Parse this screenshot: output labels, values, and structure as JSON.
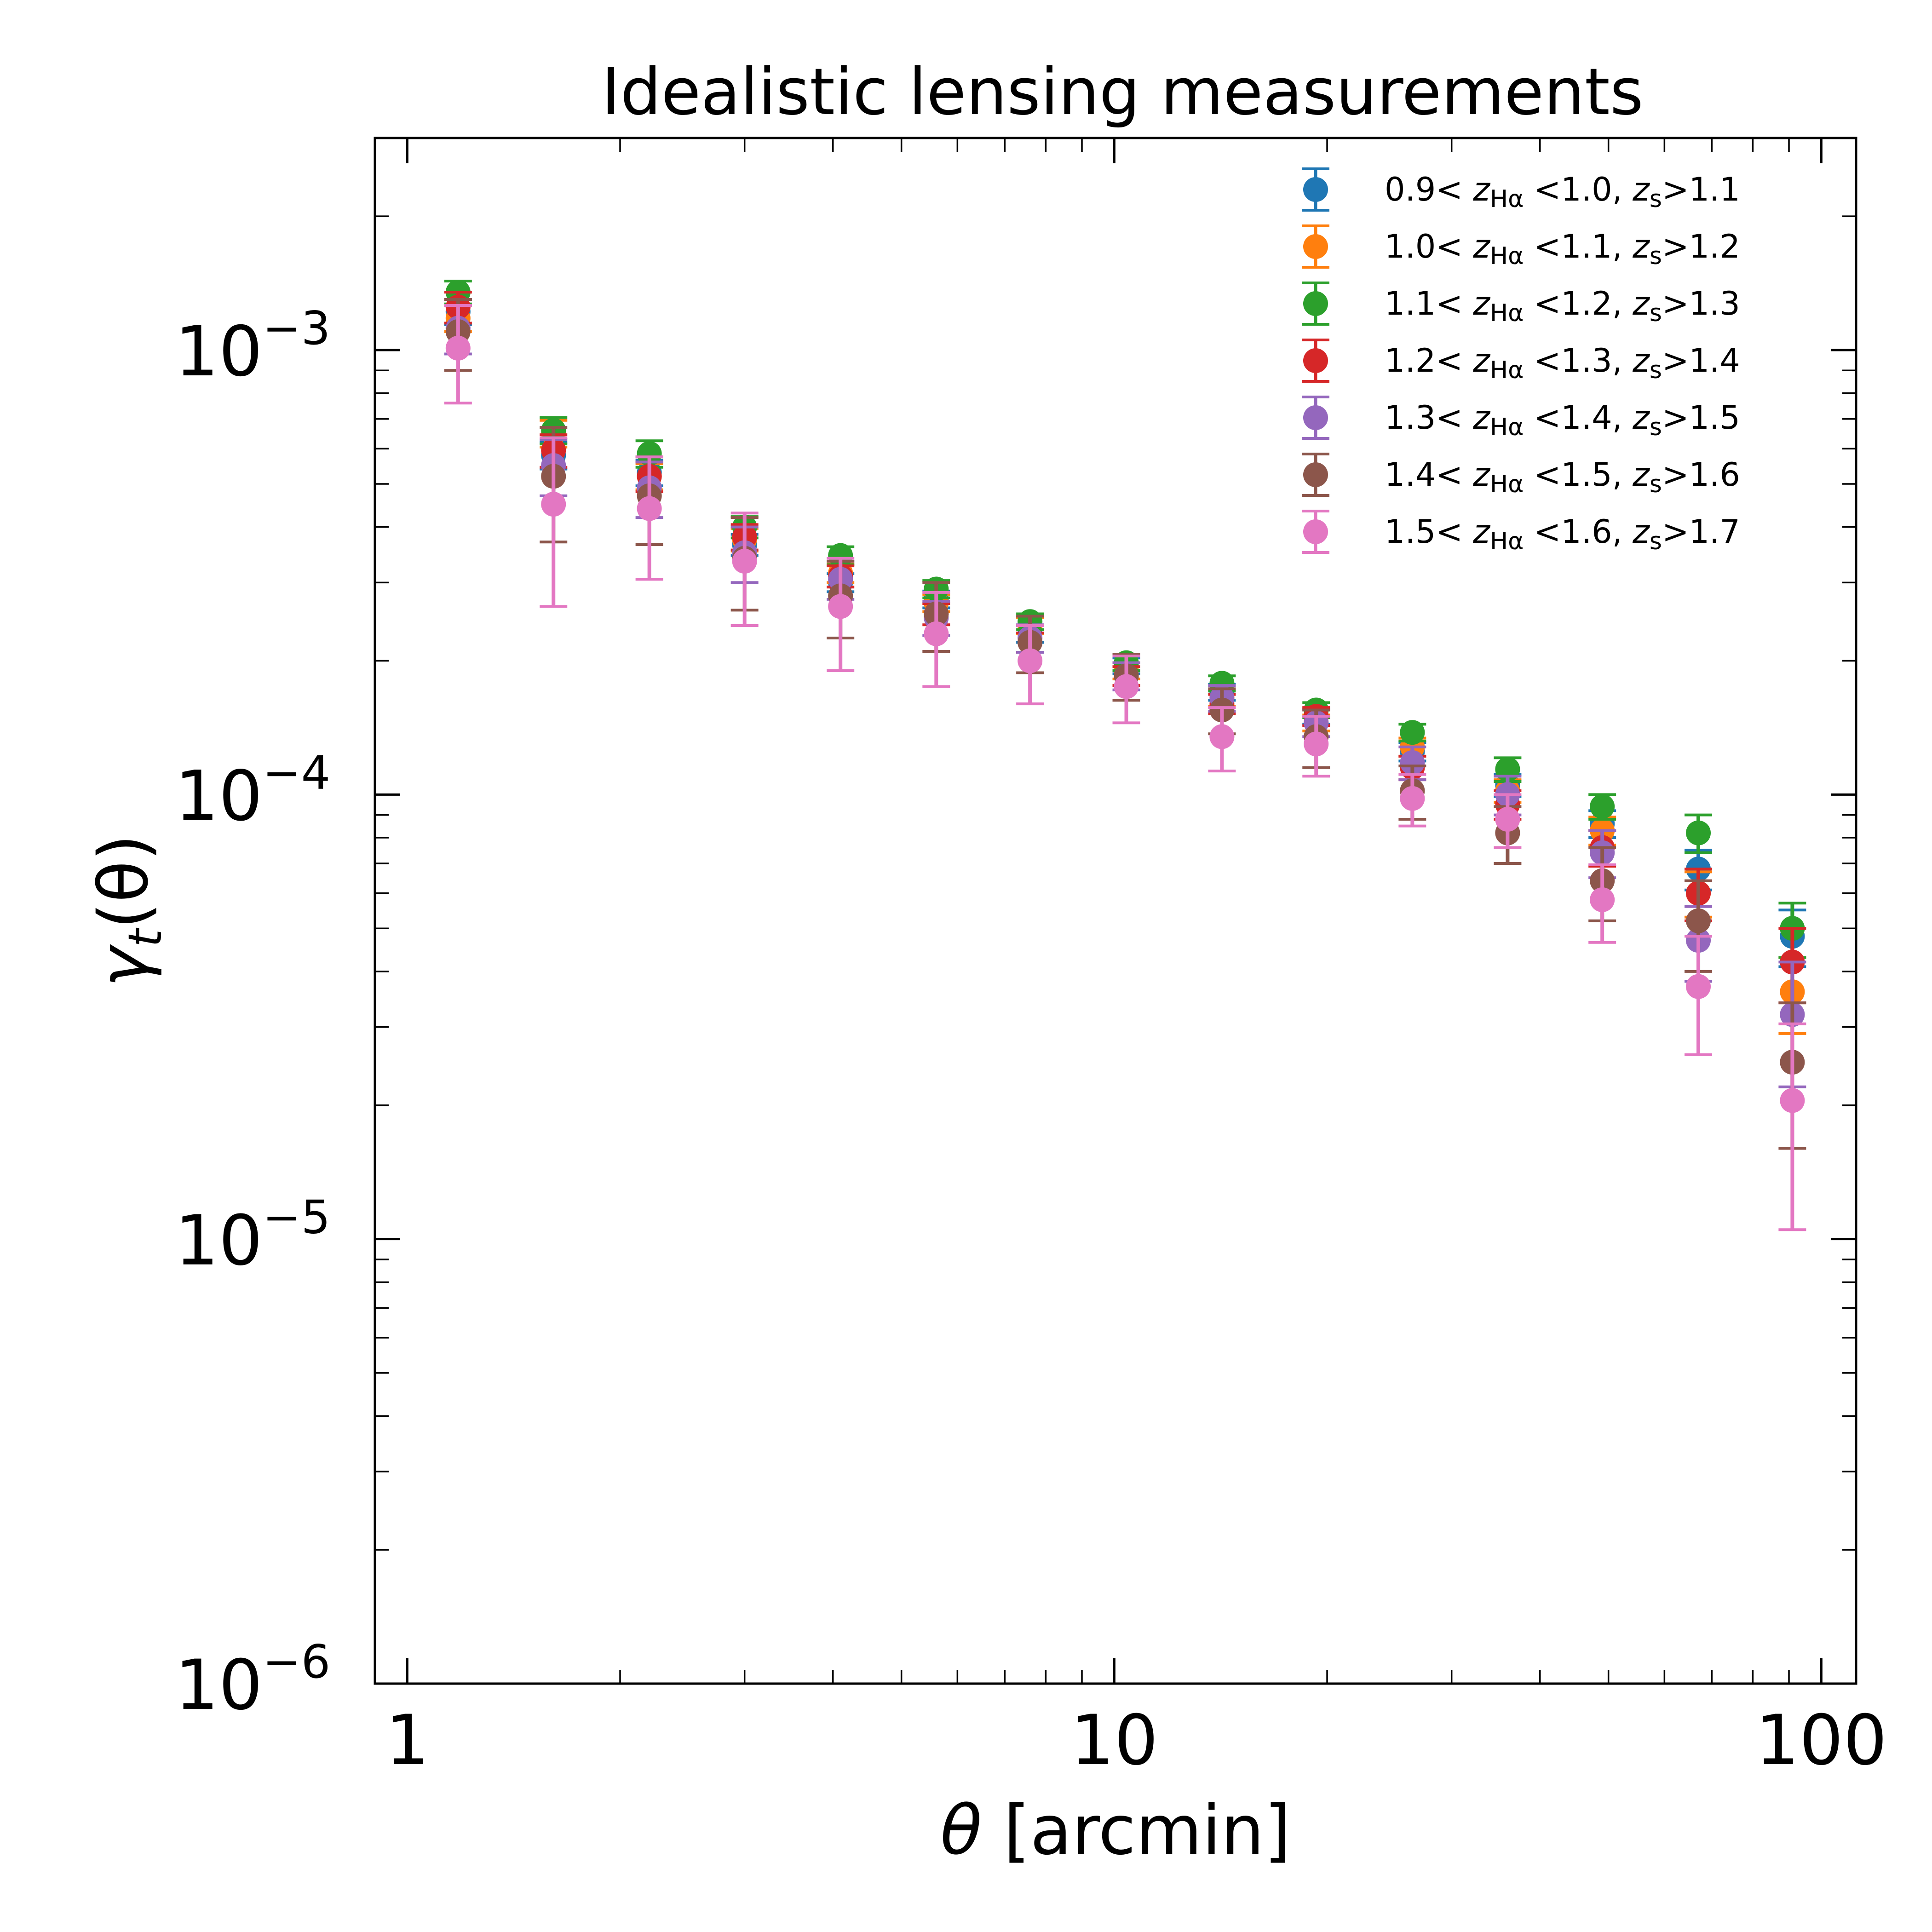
{
  "chart_data": {
    "type": "scatter",
    "title": "Idealistic lensing measurements",
    "xlabel": {
      "symbol": "θ",
      "text": " [arcmin]"
    },
    "ylabel": {
      "symbol": "γ",
      "sub": "t",
      "text": "(θ)"
    },
    "xscale": "log",
    "yscale": "log",
    "xlim": [
      0.9,
      112
    ],
    "ylim": [
      1e-06,
      0.003
    ],
    "x_ticks": [
      {
        "value": 1,
        "label": "1"
      },
      {
        "value": 10,
        "label": "10"
      },
      {
        "value": 100,
        "label": "100"
      }
    ],
    "y_ticks": [
      {
        "value": 0.001,
        "base": "10",
        "exp": "−3"
      },
      {
        "value": 0.0001,
        "base": "10",
        "exp": "−4"
      },
      {
        "value": 1e-05,
        "base": "10",
        "exp": "−5"
      },
      {
        "value": 1e-06,
        "base": "10",
        "exp": "−6"
      }
    ],
    "legend_position": "top-right",
    "x": [
      1.18,
      1.61,
      2.2,
      3.0,
      4.1,
      5.6,
      7.6,
      10.4,
      14.2,
      19.3,
      26.4,
      36.0,
      49.0,
      67.0,
      91.0
    ],
    "series": [
      {
        "name": {
          "lo": "0.9",
          "hi": "1.0",
          "src": "1.1"
        },
        "color": "#1f77b4",
        "y": [
          0.00122,
          0.00058,
          0.00053,
          0.000365,
          0.0003,
          0.000275,
          0.00023,
          0.000195,
          0.00017,
          0.00015,
          0.000125,
          0.000105,
          8.6e-05,
          6.8e-05,
          4.8e-05
        ],
        "err": [
          8e-05,
          4e-05,
          3.5e-05,
          2e-05,
          1.4e-05,
          1.2e-05,
          1e-05,
          8e-06,
          7e-06,
          6e-06,
          6e-06,
          6e-06,
          6e-06,
          7e-06,
          7e-06
        ]
      },
      {
        "name": {
          "lo": "1.0",
          "hi": "1.1",
          "src": "1.2"
        },
        "color": "#ff7f0e",
        "y": [
          0.00118,
          0.00065,
          0.00052,
          0.000375,
          0.000315,
          0.00027,
          0.00024,
          0.00019,
          0.000165,
          0.000145,
          0.000128,
          0.000102,
          8.3e-05,
          6e-05,
          3.6e-05
        ],
        "err": [
          8e-05,
          4.5e-05,
          3.5e-05,
          2.2e-05,
          1.5e-05,
          1.2e-05,
          1e-05,
          8e-06,
          7e-06,
          6e-06,
          6e-06,
          6e-06,
          6e-06,
          7e-06,
          7e-06
        ]
      },
      {
        "name": {
          "lo": "1.1",
          "hi": "1.2",
          "src": "1.3"
        },
        "color": "#2ca02c",
        "y": [
          0.00135,
          0.00066,
          0.000585,
          0.0004,
          0.000345,
          0.00029,
          0.000245,
          0.000198,
          0.000178,
          0.000155,
          0.000138,
          0.000114,
          9.4e-05,
          8.2e-05,
          5e-05
        ],
        "err": [
          8e-05,
          4.5e-05,
          4e-05,
          2.2e-05,
          1.6e-05,
          1.3e-05,
          1e-05,
          8e-06,
          7e-06,
          6e-06,
          6e-06,
          7e-06,
          6e-06,
          8e-06,
          7e-06
        ]
      },
      {
        "name": {
          "lo": "1.2",
          "hi": "1.3",
          "src": "1.4"
        },
        "color": "#d62728",
        "y": [
          0.00125,
          0.000595,
          0.00052,
          0.00038,
          0.00031,
          0.000255,
          0.00022,
          0.000185,
          0.00016,
          0.00015,
          0.000115,
          9.5e-05,
          7.6e-05,
          6e-05,
          4.2e-05
        ],
        "err": [
          0.0001,
          5e-05,
          4e-05,
          2.5e-05,
          1.7e-05,
          1.4e-05,
          1.1e-05,
          9e-06,
          8e-06,
          7e-06,
          7e-06,
          7e-06,
          7e-06,
          8e-06,
          8e-06
        ]
      },
      {
        "name": {
          "lo": "1.3",
          "hi": "1.4",
          "src": "1.5"
        },
        "color": "#9467bd",
        "y": [
          0.00112,
          0.00055,
          0.00049,
          0.00035,
          0.000305,
          0.00025,
          0.000225,
          0.000185,
          0.000165,
          0.000145,
          0.000118,
          0.0001,
          7.4e-05,
          4.7e-05,
          3.2e-05
        ],
        "err": [
          0.00014,
          8e-05,
          7e-05,
          5e-05,
          3e-05,
          2.2e-05,
          1.6e-05,
          1.3e-05,
          1.1e-05,
          1e-05,
          1e-05,
          1e-05,
          9e-06,
          9e-06,
          1e-05
        ]
      },
      {
        "name": {
          "lo": "1.4",
          "hi": "1.5",
          "src": "1.6"
        },
        "color": "#8c564b",
        "y": [
          0.0011,
          0.00052,
          0.00047,
          0.00034,
          0.00028,
          0.000255,
          0.00022,
          0.000185,
          0.000155,
          0.000135,
          0.000102,
          8.2e-05,
          6.4e-05,
          5.2e-05,
          2.5e-05
        ],
        "err": [
          0.0002,
          0.00015,
          0.000105,
          8e-05,
          5.5e-05,
          4.5e-05,
          3.2e-05,
          2.2e-05,
          1.8e-05,
          2e-05,
          1.4e-05,
          1.2e-05,
          1.2e-05,
          1.2e-05,
          9e-06
        ]
      },
      {
        "name": {
          "lo": "1.5",
          "hi": "1.6",
          "src": "1.7"
        },
        "color": "#e377c2",
        "y": [
          0.00101,
          0.00045,
          0.00044,
          0.000335,
          0.000265,
          0.00023,
          0.0002,
          0.000175,
          0.000135,
          0.00013,
          9.8e-05,
          8.8e-05,
          5.8e-05,
          3.7e-05,
          2.05e-05
        ],
        "err": [
          0.00025,
          0.000185,
          0.000135,
          9.5e-05,
          7.5e-05,
          5.5e-05,
          4e-05,
          3e-05,
          2.2e-05,
          2e-05,
          1.3e-05,
          1.2e-05,
          1.15e-05,
          1.1e-05,
          1e-05
        ]
      }
    ]
  }
}
